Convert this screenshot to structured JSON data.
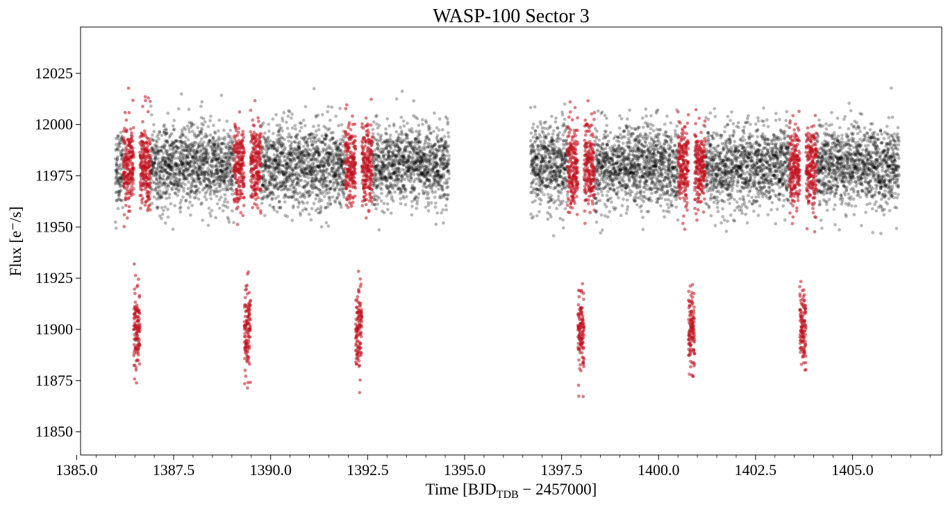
{
  "chart_data": {
    "type": "scatter",
    "title": "WASP-100 Sector 3",
    "xlabel": {
      "main": "Time [BJD",
      "sub": "TDB",
      "rest": " − 2457000]"
    },
    "ylabel": "Flux [e⁻/s]",
    "xlim": [
      1385.1,
      1407.3
    ],
    "ylim": [
      11838.7,
      12047.6
    ],
    "xticks": [
      1385.0,
      1387.5,
      1390.0,
      1392.5,
      1395.0,
      1397.5,
      1400.0,
      1402.5,
      1405.0
    ],
    "xtick_labels": [
      "1385.0",
      "1387.5",
      "1390.0",
      "1392.5",
      "1395.0",
      "1397.5",
      "1400.0",
      "1402.5",
      "1405.0"
    ],
    "yticks": [
      11850,
      11875,
      11900,
      11925,
      11950,
      11975,
      12000,
      12025
    ],
    "ytick_labels": [
      "11850",
      "11875",
      "11900",
      "11925",
      "11950",
      "11975",
      "12000",
      "12025"
    ],
    "x_minor_step": 0.5,
    "grid": false,
    "legend": "none",
    "series": [
      {
        "role": "out-of-transit",
        "color": "#000000",
        "alpha": 0.28,
        "segments": [
          [
            1386.0,
            1394.6
          ],
          [
            1396.7,
            1406.2
          ]
        ],
        "baseline": 11980,
        "scatter": 10,
        "cadence_days": 0.00139
      },
      {
        "role": "in-transit",
        "color": "#c1121f",
        "alpha": 0.55,
        "transit_centers": [
          1386.55,
          1389.4,
          1392.27,
          1398.0,
          1400.85,
          1403.72
        ],
        "depth": 80,
        "duration_days": 0.16,
        "window_half_width_days": 0.35,
        "transit_floor": 11900
      }
    ]
  }
}
